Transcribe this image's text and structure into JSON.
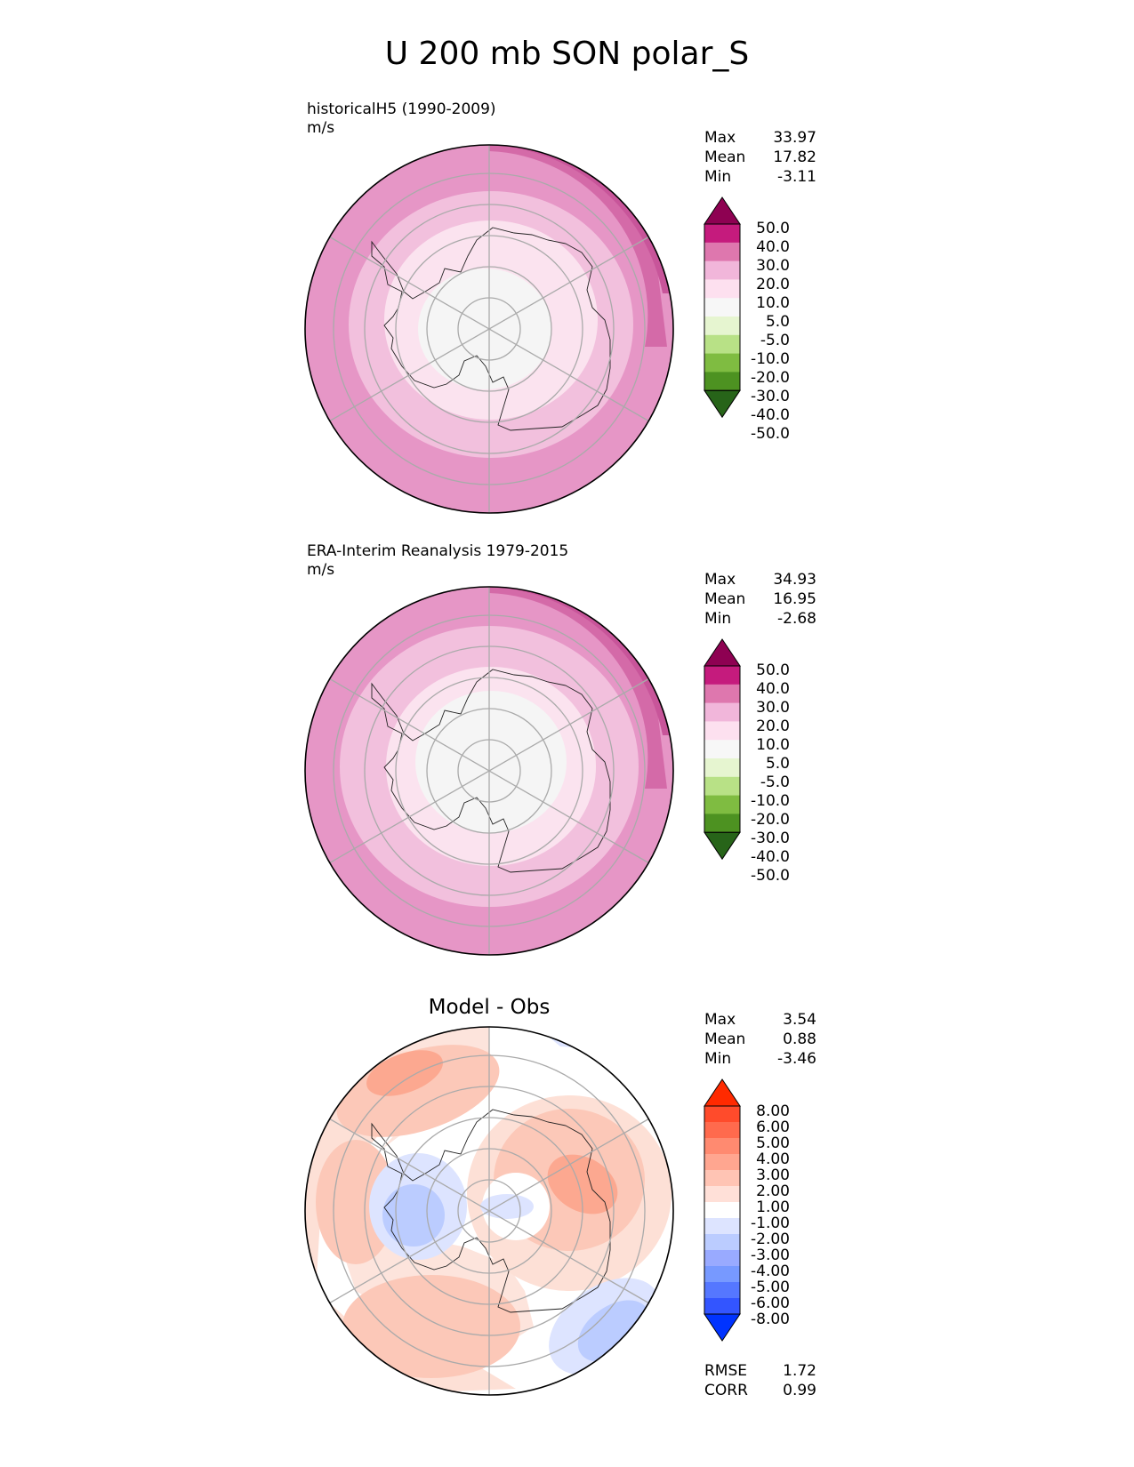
{
  "figure": {
    "title": "U 200 mb SON polar_S"
  },
  "colors": {
    "full_scale": [
      "#276419",
      "#4d9221",
      "#7fbc41",
      "#b8e186",
      "#e6f5d0",
      "#f7f7f7",
      "#fde0ef",
      "#f1b6da",
      "#de77ae",
      "#c51b7d",
      "#8e0152"
    ],
    "diff_scale": [
      "#0033ff",
      "#3355ff",
      "#5577ff",
      "#7799ff",
      "#99aaff",
      "#bbccff",
      "#dde4ff",
      "#ffffff",
      "#ffe0d8",
      "#ffc4b4",
      "#ffa690",
      "#ff8a70",
      "#ff6a4d",
      "#ff4b2b",
      "#ff2a00"
    ]
  },
  "panels": [
    {
      "id": "model",
      "title": "historicalH5 (1990-2009)",
      "units": "m/s",
      "stats": [
        {
          "label": "Max",
          "value": "33.97"
        },
        {
          "label": "Mean",
          "value": "17.82"
        },
        {
          "label": "Min",
          "value": "-3.11"
        }
      ],
      "colorbar_levels": [
        "50.0",
        "40.0",
        "30.0",
        "20.0",
        "10.0",
        "5.0",
        "-5.0",
        "-10.0",
        "-20.0",
        "-30.0",
        "-40.0",
        "-50.0"
      ]
    },
    {
      "id": "obs",
      "title": "ERA-Interim Reanalysis 1979-2015",
      "units": "m/s",
      "stats": [
        {
          "label": "Max",
          "value": "34.93"
        },
        {
          "label": "Mean",
          "value": "16.95"
        },
        {
          "label": "Min",
          "value": "-2.68"
        }
      ],
      "colorbar_levels": [
        "50.0",
        "40.0",
        "30.0",
        "20.0",
        "10.0",
        "5.0",
        "-5.0",
        "-10.0",
        "-20.0",
        "-30.0",
        "-40.0",
        "-50.0"
      ]
    },
    {
      "id": "diff",
      "title": "Model - Obs",
      "stats": [
        {
          "label": "Max",
          "value": "3.54"
        },
        {
          "label": "Mean",
          "value": "0.88"
        },
        {
          "label": "Min",
          "value": "-3.46"
        }
      ],
      "colorbar_levels": [
        "8.00",
        "6.00",
        "5.00",
        "4.00",
        "3.00",
        "2.00",
        "1.00",
        "-1.00",
        "-2.00",
        "-3.00",
        "-4.00",
        "-5.00",
        "-6.00",
        "-8.00"
      ],
      "metrics": [
        {
          "label": "RMSE",
          "value": "1.72"
        },
        {
          "label": "CORR",
          "value": "0.99"
        }
      ]
    }
  ],
  "chart_data": [
    {
      "type": "heatmap",
      "title": "historicalH5 (1990-2009)",
      "units": "m/s",
      "projection": "south polar stereographic",
      "stats": {
        "max": 33.97,
        "mean": 17.82,
        "min": -3.11
      },
      "colorbar_levels": [
        -50,
        -40,
        -30,
        -20,
        -10,
        -5,
        5,
        10,
        20,
        30,
        40,
        50
      ]
    },
    {
      "type": "heatmap",
      "title": "ERA-Interim Reanalysis 1979-2015",
      "units": "m/s",
      "projection": "south polar stereographic",
      "stats": {
        "max": 34.93,
        "mean": 16.95,
        "min": -2.68
      },
      "colorbar_levels": [
        -50,
        -40,
        -30,
        -20,
        -10,
        -5,
        5,
        10,
        20,
        30,
        40,
        50
      ]
    },
    {
      "type": "heatmap",
      "title": "Model - Obs",
      "projection": "south polar stereographic",
      "stats": {
        "max": 3.54,
        "mean": 0.88,
        "min": -3.46,
        "rmse": 1.72,
        "corr": 0.99
      },
      "colorbar_levels": [
        -8,
        -6,
        -5,
        -4,
        -3,
        -2,
        -1,
        1,
        2,
        3,
        4,
        5,
        6,
        8
      ]
    }
  ]
}
